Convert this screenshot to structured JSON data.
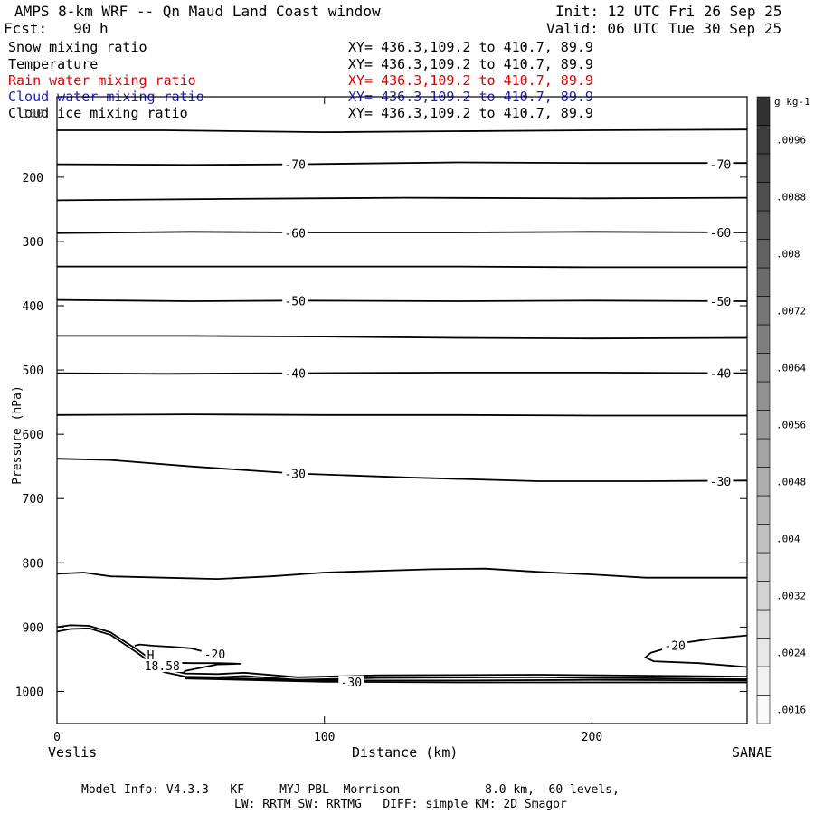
{
  "header": {
    "title": "AMPS 8-km WRF -- Qn Maud Land Coast window",
    "init": "Init: 12 UTC Fri 26 Sep 25",
    "fcst": "Fcst:   90 h",
    "valid": "Valid: 06 UTC Tue 30 Sep 25"
  },
  "fields": [
    {
      "name": "Snow mixing ratio",
      "xy": "XY= 436.3,109.2 to 410.7, 89.9",
      "color": "#000000"
    },
    {
      "name": "Temperature",
      "xy": "XY= 436.3,109.2 to 410.7, 89.9",
      "color": "#000000"
    },
    {
      "name": "Rain water mixing ratio",
      "xy": "XY= 436.3,109.2 to 410.7, 89.9",
      "color": "#e00000"
    },
    {
      "name": "Cloud water mixing ratio",
      "xy": "XY= 436.3,109.2 to 410.7, 89.9",
      "color": "#2020c0"
    },
    {
      "name": "Cloud ice mixing ratio",
      "xy": "XY= 436.3,109.2 to 410.7, 89.9",
      "color": "#000000"
    }
  ],
  "footer": {
    "line1": "Model Info: V4.3.3   KF     MYJ PBL  Morrison            8.0 km,  60 levels,",
    "line2": "LW: RRTM SW: RRTMG   DIFF: simple KM: 2D Smagor"
  },
  "chart_data": {
    "type": "contour",
    "title": "AMPS 8-km WRF -- Qn Maud Land Coast window",
    "xlabel": "Distance (km)",
    "ylabel": "Pressure (hPa)",
    "xlim": [
      0,
      258
    ],
    "ylim": [
      1050,
      75
    ],
    "x_ticks": [
      0,
      100,
      200
    ],
    "y_ticks": [
      200,
      300,
      400,
      500,
      600,
      700,
      800,
      900,
      1000
    ],
    "y_tick_labels": [
      "200",
      "300",
      "400",
      "500",
      "600",
      "700",
      "800",
      "900",
      "1000"
    ],
    "left_endpoint": "Veslis",
    "right_endpoint": "SANAE",
    "contour_labels": [
      {
        "text": "-70",
        "x": 89,
        "p": 180
      },
      {
        "text": "-70",
        "x": 248,
        "p": 180
      },
      {
        "text": "-60",
        "x": 89,
        "p": 287
      },
      {
        "text": "-60",
        "x": 248,
        "p": 286
      },
      {
        "text": "-50",
        "x": 89,
        "p": 392
      },
      {
        "text": "-50",
        "x": 248,
        "p": 393
      },
      {
        "text": "-40",
        "x": 89,
        "p": 505
      },
      {
        "text": "-40",
        "x": 248,
        "p": 505
      },
      {
        "text": "-30",
        "x": 89,
        "p": 661
      },
      {
        "text": "-30",
        "x": 248,
        "p": 673
      },
      {
        "text": "-20",
        "x": 59,
        "p": 942
      },
      {
        "text": "-20",
        "x": 231,
        "p": 928
      },
      {
        "text": "-30",
        "x": 110,
        "p": 985
      },
      {
        "text": "-18.58",
        "x": 38,
        "p": 960
      },
      {
        "text": "H",
        "x": 35,
        "p": 943
      }
    ],
    "isotherms": [
      {
        "value": -65,
        "points": [
          [
            0,
            127
          ],
          [
            40,
            127
          ],
          [
            100,
            130
          ],
          [
            200,
            127
          ],
          [
            258,
            126
          ]
        ]
      },
      {
        "value": -70,
        "points": [
          [
            0,
            180
          ],
          [
            50,
            181
          ],
          [
            89,
            180
          ],
          [
            150,
            177
          ],
          [
            200,
            178
          ],
          [
            258,
            178
          ]
        ]
      },
      {
        "value": -65,
        "points": [
          [
            0,
            236
          ],
          [
            60,
            234
          ],
          [
            130,
            232
          ],
          [
            200,
            233
          ],
          [
            258,
            232
          ]
        ]
      },
      {
        "value": -60,
        "points": [
          [
            0,
            287
          ],
          [
            50,
            285
          ],
          [
            89,
            286
          ],
          [
            150,
            286
          ],
          [
            200,
            285
          ],
          [
            258,
            286
          ]
        ]
      },
      {
        "value": -55,
        "points": [
          [
            0,
            339
          ],
          [
            100,
            339
          ],
          [
            150,
            339
          ],
          [
            200,
            340
          ],
          [
            258,
            340
          ]
        ]
      },
      {
        "value": -50,
        "points": [
          [
            0,
            391
          ],
          [
            50,
            393
          ],
          [
            89,
            392
          ],
          [
            150,
            393
          ],
          [
            200,
            392
          ],
          [
            258,
            393
          ]
        ]
      },
      {
        "value": -45,
        "points": [
          [
            0,
            447
          ],
          [
            50,
            447
          ],
          [
            100,
            448
          ],
          [
            150,
            450
          ],
          [
            200,
            451
          ],
          [
            258,
            450
          ]
        ]
      },
      {
        "value": -40,
        "points": [
          [
            0,
            505
          ],
          [
            40,
            506
          ],
          [
            89,
            505
          ],
          [
            150,
            504
          ],
          [
            200,
            504
          ],
          [
            258,
            505
          ]
        ]
      },
      {
        "value": -35,
        "points": [
          [
            0,
            570
          ],
          [
            50,
            569
          ],
          [
            100,
            570
          ],
          [
            150,
            570
          ],
          [
            200,
            571
          ],
          [
            258,
            571
          ]
        ]
      },
      {
        "value": -30,
        "points": [
          [
            0,
            638
          ],
          [
            20,
            640
          ],
          [
            50,
            650
          ],
          [
            89,
            661
          ],
          [
            130,
            667
          ],
          [
            180,
            673
          ],
          [
            220,
            673
          ],
          [
            258,
            672
          ]
        ]
      },
      {
        "value": -25,
        "points": [
          [
            0,
            817
          ],
          [
            10,
            815
          ],
          [
            20,
            821
          ],
          [
            40,
            823
          ],
          [
            60,
            825
          ],
          [
            80,
            821
          ],
          [
            100,
            815
          ],
          [
            140,
            810
          ],
          [
            160,
            809
          ],
          [
            180,
            814
          ],
          [
            200,
            818
          ],
          [
            220,
            823
          ],
          [
            258,
            823
          ]
        ]
      },
      {
        "value": -20,
        "points": [
          [
            0,
            907
          ],
          [
            5,
            903
          ],
          [
            12,
            902
          ],
          [
            20,
            912
          ],
          [
            30,
            940
          ],
          [
            40,
            970
          ],
          [
            48,
            977
          ],
          [
            60,
            978
          ],
          [
            70,
            976
          ],
          [
            90,
            982
          ],
          [
            120,
            979
          ],
          [
            180,
            978
          ],
          [
            258,
            981
          ]
        ]
      },
      {
        "value": -20,
        "points": [
          [
            0,
            900
          ],
          [
            5,
            897
          ],
          [
            12,
            898
          ],
          [
            20,
            908
          ],
          [
            30,
            935
          ],
          [
            40,
            965
          ],
          [
            48,
            972
          ],
          [
            60,
            973
          ],
          [
            70,
            971
          ],
          [
            90,
            978
          ],
          [
            120,
            975
          ],
          [
            180,
            974
          ],
          [
            258,
            977
          ]
        ]
      },
      {
        "value": -30,
        "points": [
          [
            48,
            978
          ],
          [
            100,
            983
          ],
          [
            150,
            983
          ],
          [
            200,
            982
          ],
          [
            258,
            983
          ]
        ]
      },
      {
        "value": -30,
        "points": [
          [
            48,
            980
          ],
          [
            100,
            985
          ],
          [
            150,
            986
          ],
          [
            200,
            986
          ],
          [
            258,
            986
          ]
        ]
      },
      {
        "value": -20,
        "points": [
          [
            29,
            929
          ],
          [
            31,
            927
          ],
          [
            36,
            929
          ],
          [
            44,
            931
          ],
          [
            50,
            933
          ],
          [
            54,
            937
          ]
        ]
      },
      {
        "value": -18.58,
        "points": [
          [
            33,
            950
          ],
          [
            40,
            955
          ],
          [
            50,
            956
          ],
          [
            60,
            956
          ],
          [
            69,
            957
          ],
          [
            60,
            958
          ],
          [
            48,
            968
          ],
          [
            47,
            972
          ]
        ]
      },
      {
        "value": -20,
        "points": [
          [
            258,
            913
          ],
          [
            245,
            918
          ],
          [
            235,
            924
          ],
          [
            222,
            940
          ],
          [
            220,
            947
          ],
          [
            223,
            953
          ],
          [
            240,
            956
          ],
          [
            258,
            962
          ]
        ]
      }
    ],
    "colorbar": {
      "unit": "g kg-1",
      "levels": [
        ".0016",
        ".002",
        ".0024",
        ".0028",
        ".0032",
        ".0036",
        ".004",
        ".0044",
        ".0048",
        ".0052",
        ".0056",
        ".006",
        ".0064",
        ".0068",
        ".0072",
        ".0076",
        ".008",
        ".0084",
        ".0088",
        ".0092",
        ".0096",
        ".01"
      ],
      "labeled_levels": [
        ".0016",
        ".0024",
        ".0032",
        ".004",
        ".0048",
        ".0056",
        ".0064",
        ".0072",
        ".008",
        ".0088",
        ".0096"
      ]
    }
  }
}
